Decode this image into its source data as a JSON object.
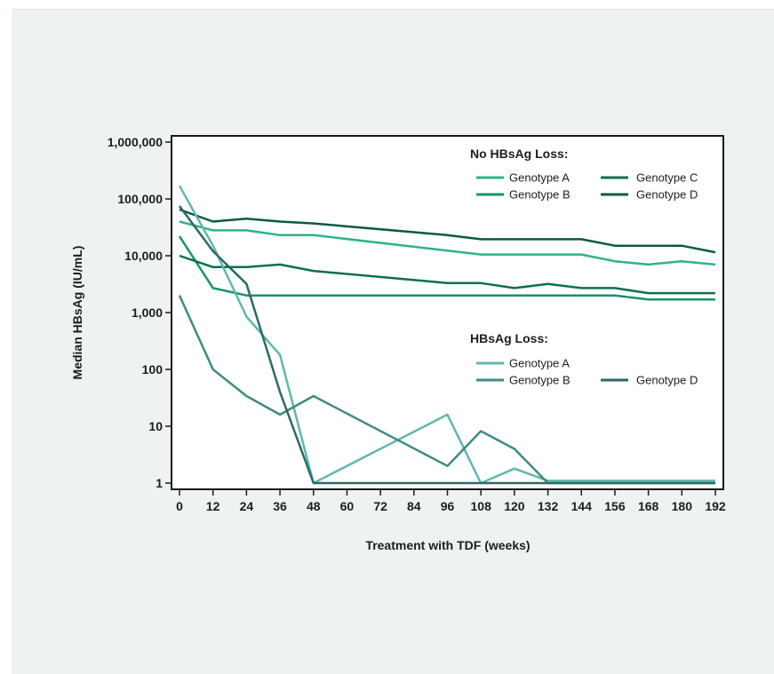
{
  "chart_data": {
    "type": "line",
    "xlabel": "Treatment with TDF (weeks)",
    "ylabel": "Median HBsAg (IU/mL)",
    "xlim": [
      0,
      192
    ],
    "ylim": [
      1,
      1000000
    ],
    "yscale": "log",
    "x_ticks": [
      0,
      12,
      24,
      36,
      48,
      60,
      72,
      84,
      96,
      108,
      120,
      132,
      144,
      156,
      168,
      180,
      192
    ],
    "y_ticks": [
      1,
      10,
      100,
      1000,
      10000,
      100000,
      1000000
    ],
    "y_tick_labels": [
      "1",
      "10",
      "100",
      "1,000",
      "10,000",
      "100,000",
      "1,000,000"
    ],
    "grid": false,
    "legend_groups": [
      {
        "title": "No HBsAg Loss:",
        "placement": "top-right",
        "entries": [
          {
            "series": 0,
            "label": "Genotype A",
            "color": "#2bb38e"
          },
          {
            "series": 1,
            "label": "Genotype B",
            "color": "#17936c"
          },
          {
            "series": 2,
            "label": "Genotype C",
            "color": "#0e6e52"
          },
          {
            "series": 3,
            "label": "Genotype D",
            "color": "#0b5a43"
          }
        ]
      },
      {
        "title": "HBsAg Loss:",
        "placement": "middle-right",
        "entries": [
          {
            "series": 4,
            "label": "Genotype A",
            "color": "#5fb8ad"
          },
          {
            "series": 5,
            "label": "Genotype B",
            "color": "#3f8b84"
          },
          {
            "series": 6,
            "label": "Genotype D",
            "color": "#2c6a65"
          }
        ]
      }
    ],
    "series": [
      {
        "name": "No HBsAg Loss: Genotype A",
        "color": "#2bb38e",
        "x": [
          0,
          12,
          24,
          36,
          48,
          108,
          144,
          156,
          168,
          180,
          192
        ],
        "y": [
          40000,
          28000,
          28000,
          23000,
          23000,
          10500,
          10500,
          8000,
          7000,
          8000,
          7000
        ]
      },
      {
        "name": "No HBsAg Loss: Genotype B",
        "color": "#17936c",
        "x": [
          0,
          12,
          24,
          156,
          168,
          192
        ],
        "y": [
          22000,
          2700,
          2000,
          2000,
          1700,
          1700
        ]
      },
      {
        "name": "No HBsAg Loss: Genotype C",
        "color": "#0e6e52",
        "x": [
          0,
          12,
          24,
          36,
          48,
          96,
          108,
          120,
          132,
          144,
          156,
          168,
          192
        ],
        "y": [
          10000,
          6300,
          6300,
          7000,
          5400,
          3300,
          3300,
          2700,
          3200,
          2700,
          2700,
          2200,
          2200
        ]
      },
      {
        "name": "No HBsAg Loss: Genotype D",
        "color": "#0b5a43",
        "x": [
          0,
          12,
          24,
          36,
          48,
          96,
          108,
          144,
          156,
          180,
          192
        ],
        "y": [
          65000,
          40000,
          45000,
          40000,
          37000,
          23000,
          19500,
          19500,
          15000,
          15000,
          11500
        ]
      },
      {
        "name": "HBsAg Loss: Genotype A",
        "color": "#5fb8ad",
        "x": [
          0,
          12,
          24,
          36,
          48,
          96,
          108,
          120,
          132,
          192
        ],
        "y": [
          170000,
          15000,
          850,
          180,
          1,
          16,
          1,
          1.8,
          1.1,
          1.1
        ]
      },
      {
        "name": "HBsAg Loss: Genotype B",
        "color": "#3f8b84",
        "x": [
          0,
          12,
          24,
          36,
          48,
          96,
          108,
          120,
          132,
          192
        ],
        "y": [
          2000,
          100,
          34,
          16,
          34,
          2,
          8.2,
          4,
          1,
          1
        ]
      },
      {
        "name": "HBsAg Loss: Genotype D",
        "color": "#2c6a65",
        "x": [
          0,
          12,
          24,
          36,
          48,
          192
        ],
        "y": [
          75000,
          12000,
          3200,
          40,
          1,
          1
        ]
      }
    ]
  }
}
